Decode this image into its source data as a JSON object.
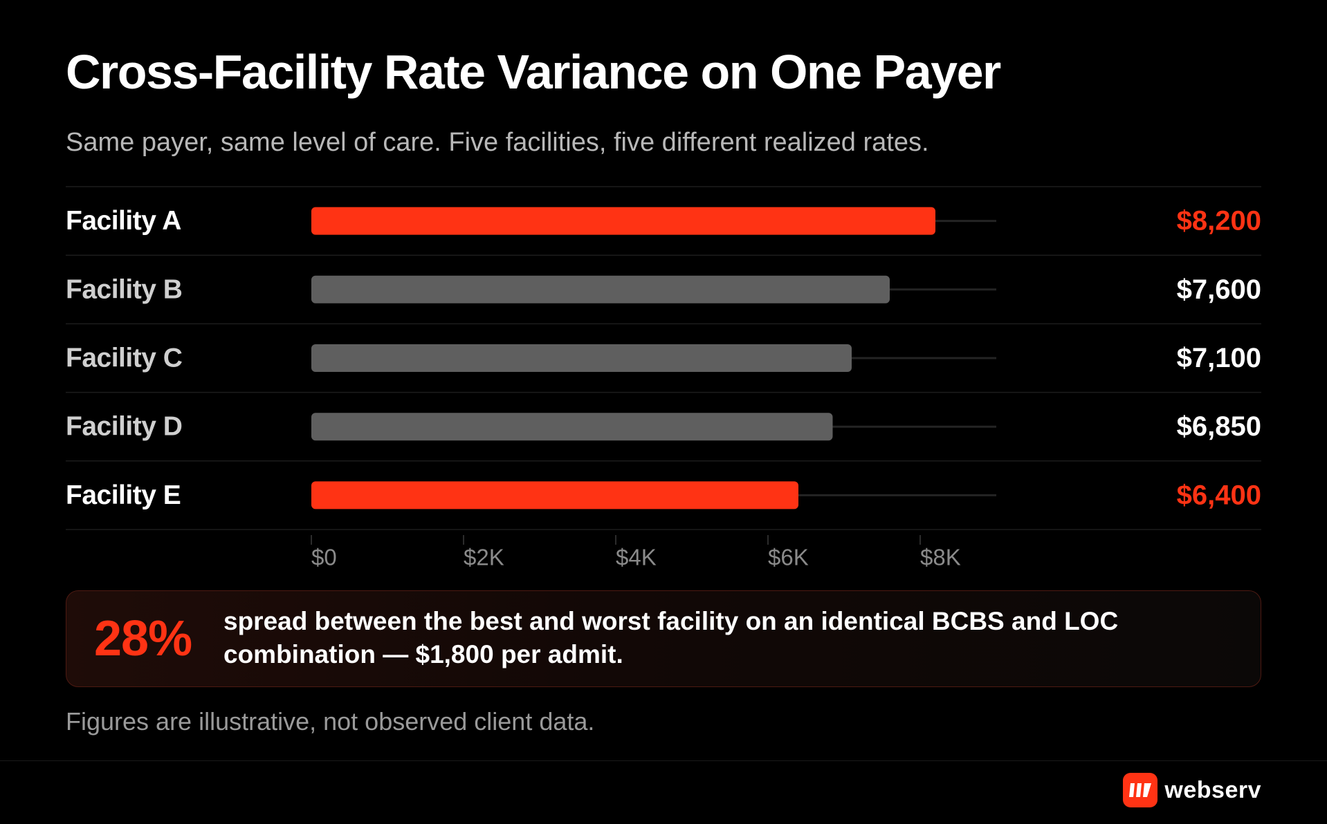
{
  "title": "Cross-Facility Rate Variance on One Payer",
  "subtitle": "Same payer, same level of care. Five facilities, five different realized rates.",
  "colors": {
    "highlight": "#ff3314",
    "neutral_bar": "#5f5f5f",
    "background": "#000000",
    "value_default": "#ffffff",
    "label_highlight": "#ffffff",
    "label_default": "#cfcfcf",
    "axis_tick": "#8a8a8a"
  },
  "chart_data": {
    "type": "bar",
    "orientation": "horizontal",
    "categories": [
      "Facility A",
      "Facility B",
      "Facility C",
      "Facility D",
      "Facility E"
    ],
    "values": [
      8200,
      7600,
      7100,
      6850,
      6400
    ],
    "value_labels": [
      "$8,200",
      "$7,600",
      "$7,100",
      "$6,850",
      "$6,400"
    ],
    "highlighted": [
      true,
      false,
      false,
      false,
      true
    ],
    "x_ticks": [
      0,
      2000,
      4000,
      6000,
      8000
    ],
    "x_tick_labels": [
      "$0",
      "$2K",
      "$4K",
      "$6K",
      "$8K"
    ],
    "xlim": [
      0,
      9000
    ],
    "grid": false,
    "legend": "none"
  },
  "callout": {
    "stat": "28%",
    "text": "spread between the best and worst facility on an identical BCBS and LOC combination — $1,800 per admit."
  },
  "footnote": "Figures are illustrative, not observed client data.",
  "brand": {
    "name": "webserv",
    "icon": "webserv-logo-icon"
  }
}
